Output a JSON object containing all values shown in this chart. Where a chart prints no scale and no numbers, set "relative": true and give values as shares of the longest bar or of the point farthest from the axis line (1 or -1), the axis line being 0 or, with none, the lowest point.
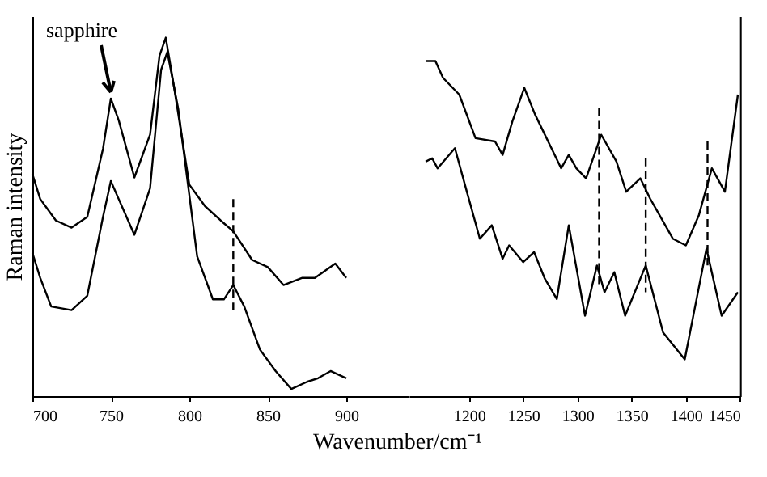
{
  "chart_data": [
    {
      "type": "line",
      "relative": true,
      "ylabel": "Raman intensity",
      "xlim": [
        700,
        940
      ],
      "xticks": [
        700,
        750,
        800,
        850,
        900
      ],
      "line_style": "solid",
      "annotations": [
        {
          "text": "sapphire",
          "x": 750,
          "y": 0.83
        }
      ],
      "series": [
        {
          "color": "#000000",
          "x": [
            700,
            705,
            715,
            725,
            735,
            745,
            750,
            755,
            765,
            775,
            781,
            785,
            790,
            800,
            810,
            820,
            828,
            840,
            850,
            860,
            872,
            880,
            893,
            900
          ],
          "values": [
            0.62,
            0.55,
            0.49,
            0.47,
            0.5,
            0.69,
            0.83,
            0.77,
            0.61,
            0.73,
            0.95,
            1.0,
            0.87,
            0.59,
            0.53,
            0.49,
            0.46,
            0.38,
            0.36,
            0.31,
            0.33,
            0.33,
            0.37,
            0.33
          ]
        },
        {
          "color": "#000000",
          "x": [
            700,
            705,
            712,
            725,
            735,
            745,
            750,
            755,
            765,
            775,
            782,
            786,
            793,
            805,
            815,
            822,
            828,
            835,
            845,
            855,
            865,
            875,
            882,
            890,
            900
          ],
          "values": [
            0.4,
            0.33,
            0.25,
            0.24,
            0.28,
            0.5,
            0.6,
            0.55,
            0.45,
            0.58,
            0.91,
            0.96,
            0.8,
            0.39,
            0.27,
            0.27,
            0.31,
            0.25,
            0.13,
            0.07,
            0.02,
            0.04,
            0.05,
            0.07,
            0.05
          ]
        },
        {
          "color": "#000000",
          "line_style": "dashed",
          "x": [
            828,
            828
          ],
          "values": [
            0.55,
            0.24
          ]
        }
      ]
    },
    {
      "type": "line",
      "relative": true,
      "xlabel": "Wavenumber/cm⁻¹",
      "xlim": [
        1145,
        1450
      ],
      "xticks": [
        1200,
        1250,
        1300,
        1350,
        1400,
        1450
      ],
      "line_style": "solid",
      "series": [
        {
          "color": "#000000",
          "x": [
            1160,
            1169,
            1176,
            1191,
            1206,
            1224,
            1231,
            1240,
            1251,
            1261,
            1276,
            1285,
            1292,
            1299,
            1308,
            1322,
            1336,
            1345,
            1358,
            1367,
            1388,
            1400,
            1412,
            1424,
            1436,
            1448
          ],
          "values": [
            1.0,
            1.0,
            0.95,
            0.9,
            0.77,
            0.76,
            0.72,
            0.82,
            0.92,
            0.84,
            0.74,
            0.68,
            0.72,
            0.68,
            0.65,
            0.78,
            0.7,
            0.61,
            0.65,
            0.59,
            0.47,
            0.45,
            0.54,
            0.68,
            0.61,
            0.9
          ]
        },
        {
          "color": "#000000",
          "x": [
            1160,
            1166,
            1171,
            1187,
            1198,
            1210,
            1221,
            1231,
            1237,
            1250,
            1260,
            1270,
            1281,
            1292,
            1307,
            1318,
            1325,
            1334,
            1344,
            1363,
            1379,
            1399,
            1419,
            1433,
            1448
          ],
          "values": [
            0.7,
            0.71,
            0.68,
            0.74,
            0.61,
            0.47,
            0.51,
            0.41,
            0.45,
            0.4,
            0.43,
            0.35,
            0.29,
            0.51,
            0.24,
            0.39,
            0.31,
            0.37,
            0.24,
            0.39,
            0.19,
            0.11,
            0.44,
            0.24,
            0.31
          ]
        },
        {
          "color": "#000000",
          "line_style": "dashed",
          "x": [
            1320,
            1320
          ],
          "values": [
            0.86,
            0.33
          ]
        },
        {
          "color": "#000000",
          "line_style": "dashed",
          "x": [
            1363,
            1363
          ],
          "values": [
            0.71,
            0.31
          ]
        },
        {
          "color": "#000000",
          "line_style": "dashed",
          "x": [
            1420,
            1420
          ],
          "values": [
            0.76,
            0.39
          ]
        }
      ]
    }
  ]
}
